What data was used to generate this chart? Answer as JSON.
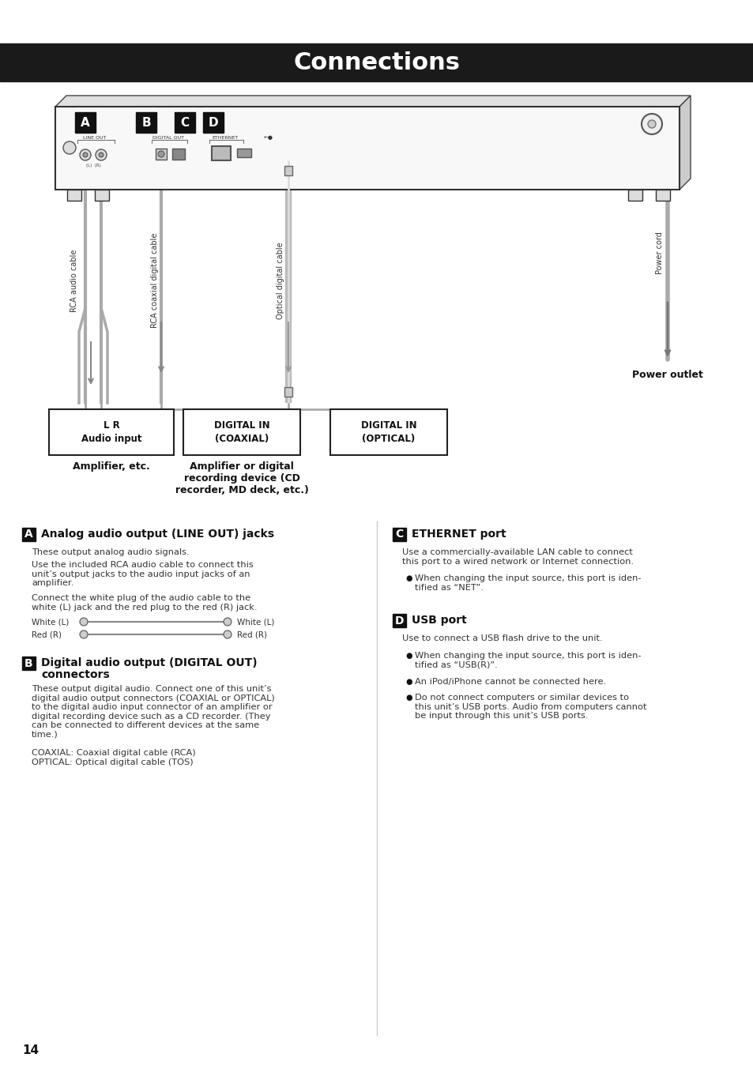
{
  "title": "Connections",
  "title_bg": "#1a1a1a",
  "title_color": "#ffffff",
  "title_fontsize": 22,
  "page_bg": "#ffffff",
  "page_number": "14",
  "section_A_heading": "Analog audio output (LINE OUT) jacks",
  "section_A_body": [
    "These output analog audio signals.",
    "Use the included RCA audio cable to connect this\nunit’s output jacks to the audio input jacks of an\namplifier.",
    "Connect the white plug of the audio cable to the\nwhite (L) jack and the red plug to the red (R) jack."
  ],
  "section_B_heading": "Digital audio output (DIGITAL OUT)\nconnectors",
  "section_B_body": [
    "These output digital audio. Connect one of this unit’s\ndigital audio output connectors (COAXIAL or OPTICAL)\nto the digital audio input connector of an amplifier or\ndigital recording device such as a CD recorder. (They\ncan be connected to different devices at the same\ntime.)",
    "COAXIAL: Coaxial digital cable (RCA)\nOPTICAL: Optical digital cable (TOS)"
  ],
  "section_C_heading": "ETHERNET port",
  "section_C_body": [
    "Use a commercially-available LAN cable to connect\nthis port to a wired network or Internet connection."
  ],
  "section_C_bullet": "When changing the input source, this port is iden-\ntified as “NET”.",
  "section_D_heading": "USB port",
  "section_D_body": "Use to connect a USB flash drive to the unit.",
  "section_D_bullets": [
    "When changing the input source, this port is iden-\ntified as “USB(R)”.",
    "An iPod/iPhone cannot be connected here.",
    "Do not connect computers or similar devices to\nthis unit’s USB ports. Audio from computers cannot\nbe input through this unit’s USB ports."
  ],
  "power_outlet_label": "Power outlet",
  "amplifier_label1": "Amplifier, etc.",
  "amplifier_label2": "Amplifier or digital\nrecording device (CD\nrecorder, MD deck, etc.)"
}
